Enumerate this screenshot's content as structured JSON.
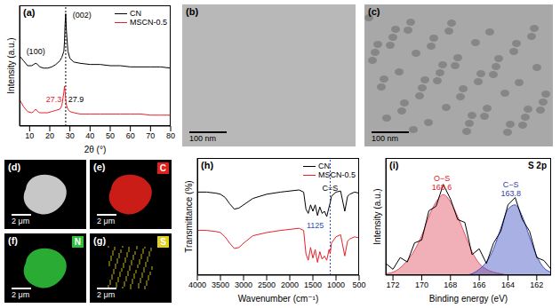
{
  "chart_data": [
    {
      "type": "line",
      "panel_label": "(a)",
      "x_label": "2θ (°)",
      "y_label": "Intensity (a.u.)",
      "x": [
        5,
        7,
        9,
        11,
        12,
        13,
        14,
        15,
        17,
        19,
        21,
        23,
        25,
        26,
        27,
        27.3,
        27.6,
        27.9,
        28.3,
        29,
        30,
        32,
        35,
        40,
        45,
        50,
        55,
        60,
        65,
        70,
        75,
        80
      ],
      "series": [
        {
          "name": "CN",
          "color": "#000000",
          "values": [
            58,
            54,
            50,
            50,
            51,
            52,
            51,
            49,
            48,
            48,
            49,
            51,
            54,
            57,
            62,
            70,
            85,
            93,
            78,
            62,
            56,
            53,
            52,
            51,
            51,
            50,
            50,
            49,
            49,
            49,
            49,
            48
          ]
        },
        {
          "name": "MSCN-0.5",
          "color": "#e8202a",
          "values": [
            22,
            16,
            12,
            11,
            12,
            14,
            12,
            11,
            11,
            11,
            12,
            13,
            14,
            17,
            28,
            33,
            29,
            22,
            17,
            14,
            12,
            11,
            10,
            10,
            10,
            10,
            10,
            10,
            10,
            9,
            9,
            9
          ]
        }
      ],
      "xlim": [
        5,
        80
      ],
      "xticks": [
        10,
        20,
        30,
        40,
        50,
        60,
        70,
        80
      ],
      "ylim": [
        0,
        100
      ],
      "tick_labels": "x",
      "legend": "upper right",
      "vlines": [
        {
          "x": 27.9,
          "color": "#000000"
        }
      ],
      "annotations": [
        {
          "text": "(100)",
          "x": 13,
          "y": 62,
          "color": "#000000"
        },
        {
          "text": "(002)",
          "x": 36,
          "y": 92,
          "color": "#000000"
        },
        {
          "text": "27.3",
          "x": 22,
          "y": 22,
          "color": "#e8202a"
        },
        {
          "text": "27.9",
          "x": 33,
          "y": 22,
          "color": "#000000"
        }
      ]
    },
    {
      "type": "line",
      "panel_label": "(h)",
      "x_label": "Wavenumber (cm⁻¹)",
      "y_label": "Transmittance (%)",
      "x": [
        4000,
        3800,
        3600,
        3500,
        3400,
        3300,
        3200,
        3100,
        3000,
        2800,
        2500,
        2200,
        2000,
        1800,
        1700,
        1650,
        1600,
        1550,
        1500,
        1450,
        1400,
        1350,
        1300,
        1250,
        1200,
        1150,
        1125,
        1100,
        1000,
        900,
        810,
        750,
        700,
        600,
        500
      ],
      "series": [
        {
          "name": "CN",
          "color": "#000000",
          "values": [
            78,
            78,
            77,
            76,
            73,
            67,
            62,
            63,
            66,
            72,
            76,
            78,
            79,
            80,
            78,
            62,
            58,
            66,
            60,
            66,
            56,
            64,
            58,
            60,
            55,
            64,
            68,
            74,
            78,
            79,
            60,
            74,
            76,
            78,
            77
          ]
        },
        {
          "name": "MSCN-0.5",
          "color": "#e8202a",
          "values": [
            42,
            42,
            41,
            40,
            36,
            30,
            25,
            26,
            30,
            37,
            40,
            42,
            43,
            44,
            42,
            20,
            14,
            26,
            16,
            24,
            12,
            22,
            15,
            18,
            14,
            24,
            20,
            30,
            36,
            38,
            18,
            32,
            34,
            36,
            35
          ]
        }
      ],
      "xlim": [
        4000,
        500
      ],
      "xticks": [
        4000,
        3500,
        3000,
        2500,
        2000,
        1500,
        1000,
        500
      ],
      "ylim": [
        0,
        110
      ],
      "tick_labels": "x",
      "legend": "upper right",
      "vlines": [
        {
          "x": 1125,
          "color": "#3050c0"
        }
      ],
      "annotations": [
        {
          "text": "C=S",
          "x": 1125,
          "y": 82,
          "color": "#000000"
        },
        {
          "text": "1125",
          "x": 1450,
          "y": 47,
          "color": "#3050c0"
        }
      ]
    },
    {
      "type": "line",
      "panel_label": "(i)",
      "title": "S 2p",
      "x_label": "Binding energy (eV)",
      "y_label": "Intensity (a.u.)",
      "x": [
        172.5,
        172,
        171.5,
        171,
        170.5,
        170,
        169.5,
        169,
        168.5,
        168,
        167.5,
        167,
        166.5,
        166,
        165.5,
        165,
        164.5,
        164,
        163.5,
        163,
        162.5,
        162,
        161.5,
        161
      ],
      "series": [
        {
          "type": "area",
          "color": "#e05060",
          "values": [
            1,
            2,
            5,
            10,
            17,
            27,
            40,
            50,
            55,
            50,
            40,
            28,
            16,
            8,
            4,
            2,
            1,
            0,
            0,
            0,
            0,
            0,
            0,
            0
          ]
        },
        {
          "type": "area",
          "color": "#4050c0",
          "values": [
            0,
            0,
            0,
            0,
            0,
            0,
            0,
            0,
            0,
            0,
            0,
            0,
            1,
            4,
            9,
            18,
            32,
            45,
            48,
            40,
            26,
            13,
            5,
            2
          ]
        },
        {
          "type": "line",
          "color": "#000000",
          "values": [
            8,
            4,
            12,
            9,
            22,
            24,
            44,
            47,
            62,
            52,
            38,
            36,
            14,
            18,
            8,
            22,
            30,
            48,
            53,
            38,
            30,
            12,
            10,
            4
          ]
        }
      ],
      "xlim": [
        172.5,
        161
      ],
      "xticks": [
        172,
        170,
        168,
        166,
        164,
        162
      ],
      "ylim": [
        0,
        80
      ],
      "tick_labels": "x",
      "annotations": [
        {
          "text": "O−S",
          "x": 168.6,
          "y": 66,
          "color": "#e0202a"
        },
        {
          "text": "168.6",
          "x": 168.6,
          "y": 60,
          "color": "#e0202a"
        },
        {
          "text": "C−S",
          "x": 163.8,
          "y": 62,
          "color": "#3040b0"
        },
        {
          "text": "163.8",
          "x": 163.8,
          "y": 56,
          "color": "#3040b0"
        }
      ]
    }
  ],
  "image_panels": [
    {
      "label": "(b)",
      "scale_bar": "100 nm",
      "color": "#b8b8b8"
    },
    {
      "label": "(c)",
      "scale_bar": "100 nm",
      "color": "#a8a8a8",
      "marker": "particles"
    },
    {
      "label": "(d)",
      "scale_bar": "2 μm",
      "color": "#dddddd"
    },
    {
      "label": "(e)",
      "element": "C",
      "scale_bar": "2 μm",
      "color": "#e0201a"
    },
    {
      "label": "(f)",
      "element": "N",
      "scale_bar": "2 μm",
      "color": "#2fbf3a"
    },
    {
      "label": "(g)",
      "element": "S",
      "scale_bar": "2 μm",
      "color": "#e0d020",
      "marker": "dots"
    }
  ]
}
